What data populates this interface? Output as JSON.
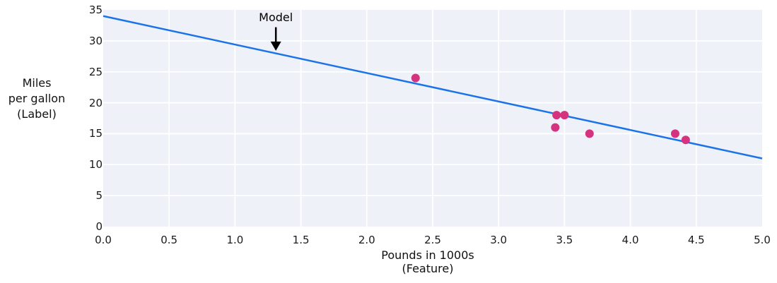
{
  "figure": {
    "background_color": "#ffffff"
  },
  "chart_data": {
    "type": "scatter",
    "title": "",
    "xlabel_lines": [
      "Pounds in 1000s",
      "(Feature)"
    ],
    "ylabel_lines": [
      "Miles",
      "per gallon",
      "(Label)"
    ],
    "xlim": [
      0.0,
      5.0
    ],
    "ylim": [
      0,
      35
    ],
    "xticks": [
      0.0,
      0.5,
      1.0,
      1.5,
      2.0,
      2.5,
      3.0,
      3.5,
      4.0,
      4.5,
      5.0
    ],
    "xtick_labels": [
      "0.0",
      "0.5",
      "1.0",
      "1.5",
      "2.0",
      "2.5",
      "3.0",
      "3.5",
      "4.0",
      "4.5",
      "5.0"
    ],
    "yticks": [
      0,
      5,
      10,
      15,
      20,
      25,
      30,
      35
    ],
    "ytick_labels": [
      "0",
      "5",
      "10",
      "15",
      "20",
      "25",
      "30",
      "35"
    ],
    "grid": true,
    "legend": "none",
    "plot_bg_color": "#eef1f8",
    "grid_color": "#ffffff",
    "series": [
      {
        "name": "car-data-points",
        "type": "scatter",
        "color": "#d5327f",
        "marker_radius": 6,
        "points": [
          {
            "x": 2.37,
            "y": 24
          },
          {
            "x": 3.44,
            "y": 18
          },
          {
            "x": 3.5,
            "y": 18
          },
          {
            "x": 3.43,
            "y": 16
          },
          {
            "x": 3.69,
            "y": 15
          },
          {
            "x": 4.34,
            "y": 15
          },
          {
            "x": 4.42,
            "y": 14
          }
        ]
      },
      {
        "name": "model-line",
        "type": "line",
        "color": "#1a73e8",
        "line_width": 2.5,
        "points": [
          {
            "x": 0.0,
            "y": 34
          },
          {
            "x": 5.0,
            "y": 11
          }
        ]
      }
    ],
    "annotation": {
      "label": "Model",
      "color": "#000000",
      "x": 1.31,
      "text_y": 33.8,
      "arrow_start_y": 32.2,
      "arrow_tip_y": 28.4
    }
  }
}
